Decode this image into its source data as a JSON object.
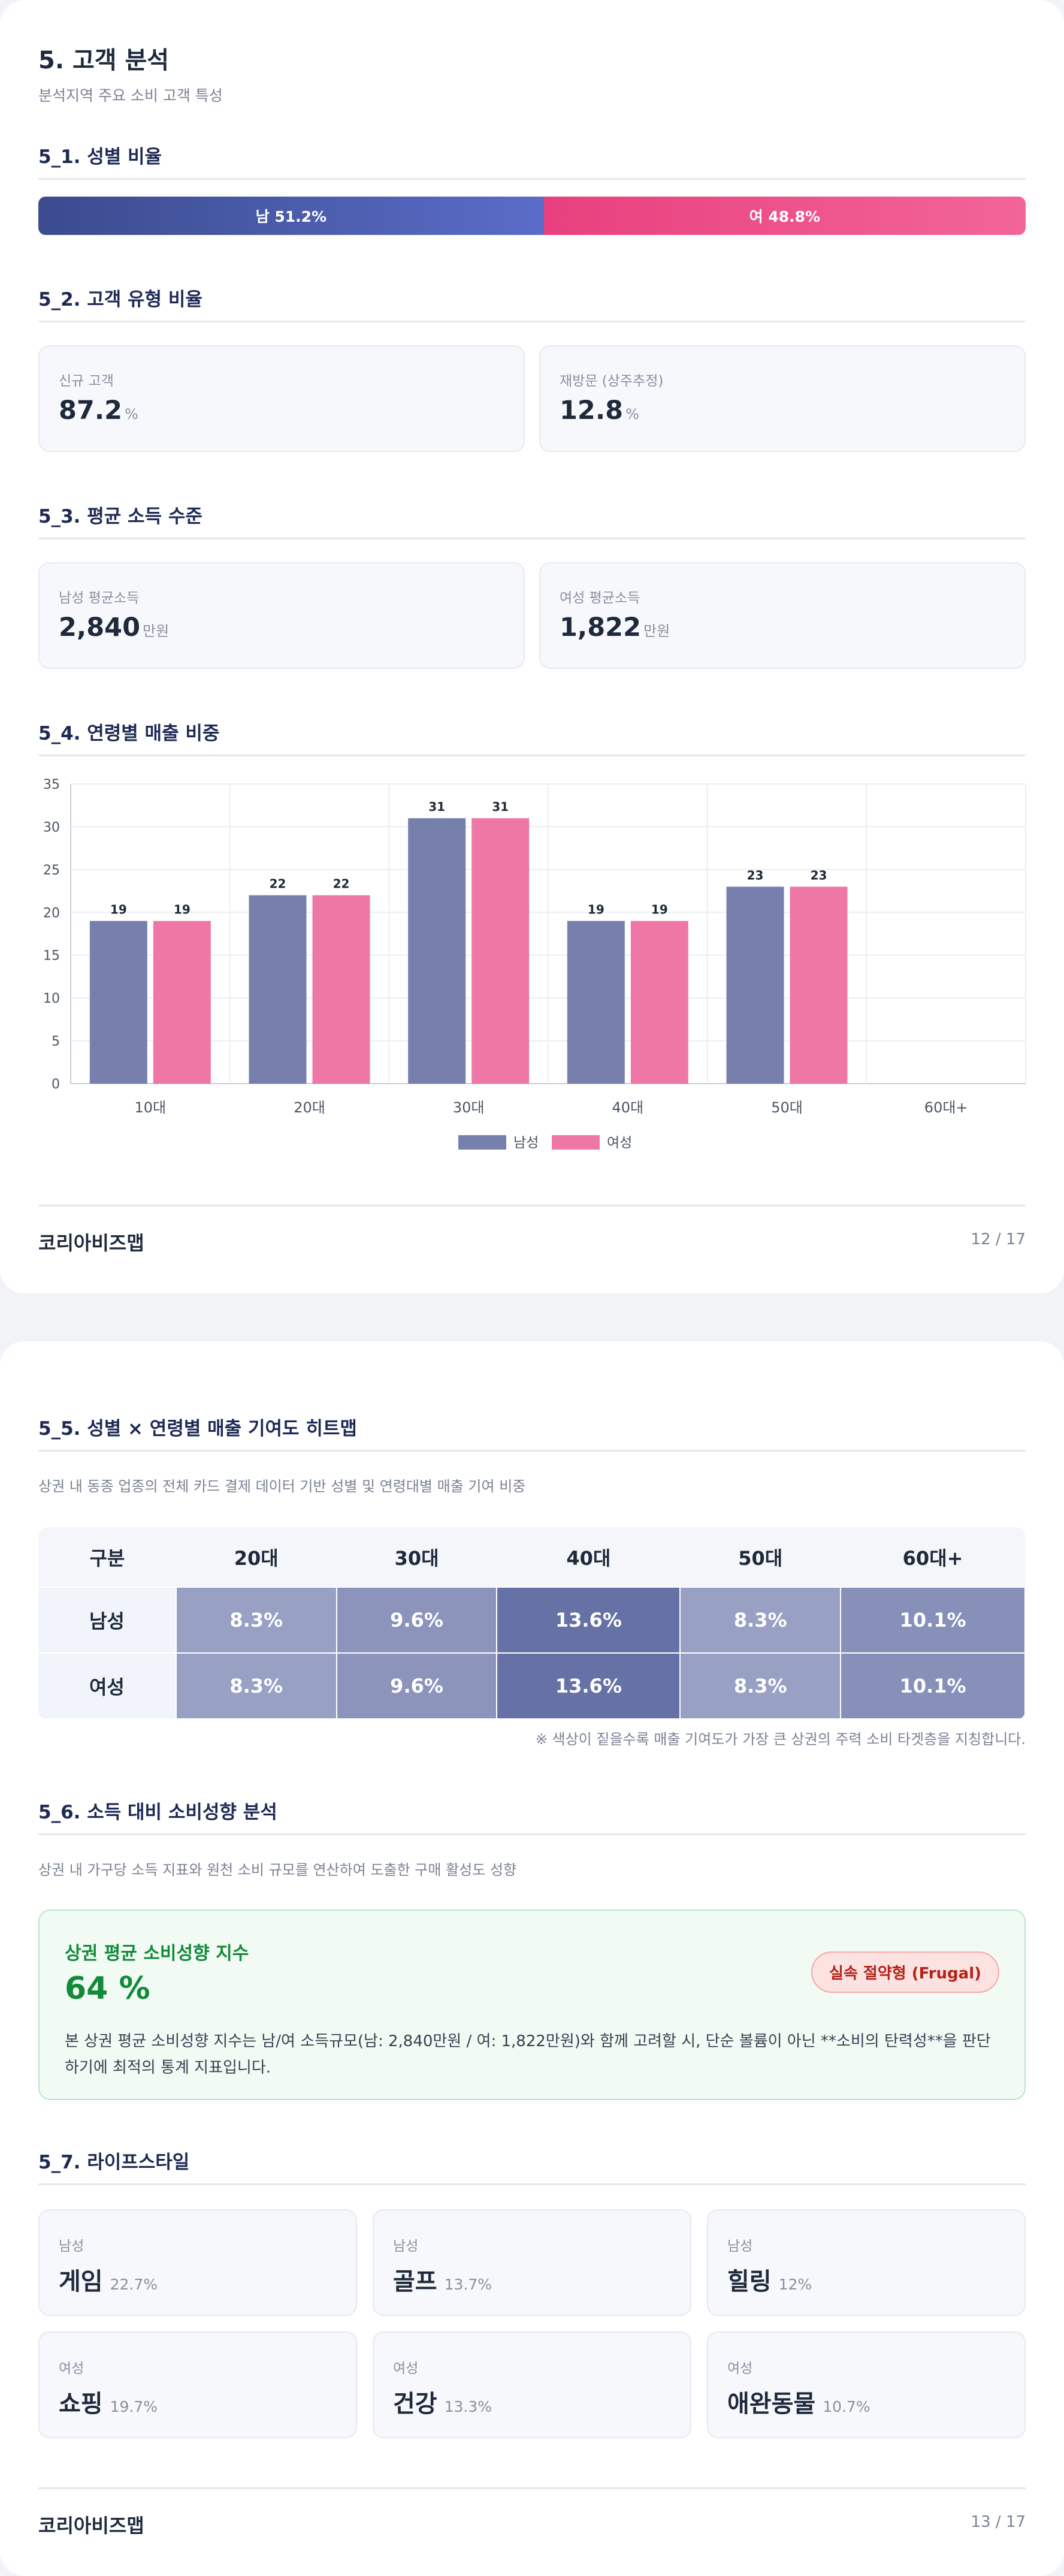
{
  "page1": {
    "title": "5. 고객 분석",
    "subtitle": "분석지역 주요 소비 고객 특성",
    "gender": {
      "heading": "5_1. 성별 비율",
      "male_label": "남 51.2%",
      "female_label": "여 48.8%",
      "male_pct": 51.2,
      "female_pct": 48.8,
      "male_color": "#4a5aab",
      "female_color": "#ec4f89"
    },
    "customer_type": {
      "heading": "5_2. 고객 유형 비율",
      "new_label": "신규 고객",
      "new_value": "87.2",
      "new_unit": "%",
      "revisit_label": "재방문 (상주추정)",
      "revisit_value": "12.8",
      "revisit_unit": "%"
    },
    "income": {
      "heading": "5_3. 평균 소득 수준",
      "male_label": "남성 평균소득",
      "male_value": "2,840",
      "male_unit": "만원",
      "female_label": "여성 평균소득",
      "female_value": "1,822",
      "female_unit": "만원"
    },
    "age_sales": {
      "heading": "5_4. 연령별 매출 비중"
    },
    "footer": {
      "brand": "코리아비즈맵",
      "page": "12 / 17"
    }
  },
  "chart_data": {
    "type": "bar",
    "categories": [
      "10대",
      "20대",
      "30대",
      "40대",
      "50대",
      "60대+"
    ],
    "series": [
      {
        "name": "남성",
        "values": [
          19,
          22,
          31,
          19,
          23,
          0
        ],
        "labels": [
          "19",
          "22",
          "31",
          "19",
          "23",
          ""
        ],
        "color": "#7780ac"
      },
      {
        "name": "여성",
        "values": [
          19,
          22,
          31,
          19,
          23,
          0
        ],
        "labels": [
          "19",
          "22",
          "31",
          "19",
          "23",
          ""
        ],
        "color": "#ee77a6"
      }
    ],
    "ylim": [
      0,
      35
    ],
    "yticks": [
      "0",
      "5",
      "10",
      "15",
      "20",
      "25",
      "30",
      "35"
    ],
    "grid": true,
    "legend": "bottom-center"
  },
  "page2": {
    "heatmap": {
      "heading": "5_5. 성별 × 연령별 매출 기여도 히트맵",
      "desc": "상권 내 동종 업종의 전체 카드 결제 데이터 기반 성별 및 연령대별 매출 기여 비중",
      "corner": "구분",
      "columns": [
        "20대",
        "30대",
        "40대",
        "50대",
        "60대+"
      ],
      "rows": [
        {
          "label": "남성",
          "cells": [
            "8.3%",
            "9.6%",
            "13.6%",
            "8.3%",
            "10.1%"
          ],
          "values": [
            8.3,
            9.6,
            13.6,
            8.3,
            10.1
          ]
        },
        {
          "label": "여성",
          "cells": [
            "8.3%",
            "9.6%",
            "13.6%",
            "8.3%",
            "10.1%"
          ],
          "values": [
            8.3,
            9.6,
            13.6,
            8.3,
            10.1
          ]
        }
      ],
      "note": "※ 색상이 짙을수록 매출 기여도가 가장 큰 상권의 주력 소비 타겟층을 지칭합니다."
    },
    "spending": {
      "heading": "5_6. 소득 대비 소비성향 분석",
      "desc": "상권 내 가구당 소득 지표와 원천 소비 규모를 연산하여 도출한 구매 활성도 성향",
      "box_title": "상권 평균 소비성향 지수",
      "box_value": "64 %",
      "badge": "실속 절약형 (Frugal)",
      "box_desc": "본 상권 평균 소비성향 지수는 남/여 소득규모(남: 2,840만원 / 여: 1,822만원)와 함께 고려할 시, 단순 볼륨이 아닌 **소비의 탄력성**을 판단하기에 최적의 통계 지표입니다."
    },
    "lifestyle": {
      "heading": "5_7. 라이프스타일",
      "items": [
        {
          "gender": "남성",
          "name": "게임",
          "pct": "22.7%"
        },
        {
          "gender": "남성",
          "name": "골프",
          "pct": "13.7%"
        },
        {
          "gender": "남성",
          "name": "힐링",
          "pct": "12%"
        },
        {
          "gender": "여성",
          "name": "쇼핑",
          "pct": "19.7%"
        },
        {
          "gender": "여성",
          "name": "건강",
          "pct": "13.3%"
        },
        {
          "gender": "여성",
          "name": "애완동물",
          "pct": "10.7%"
        }
      ]
    },
    "footer": {
      "brand": "코리아비즈맵",
      "page": "13 / 17"
    }
  }
}
